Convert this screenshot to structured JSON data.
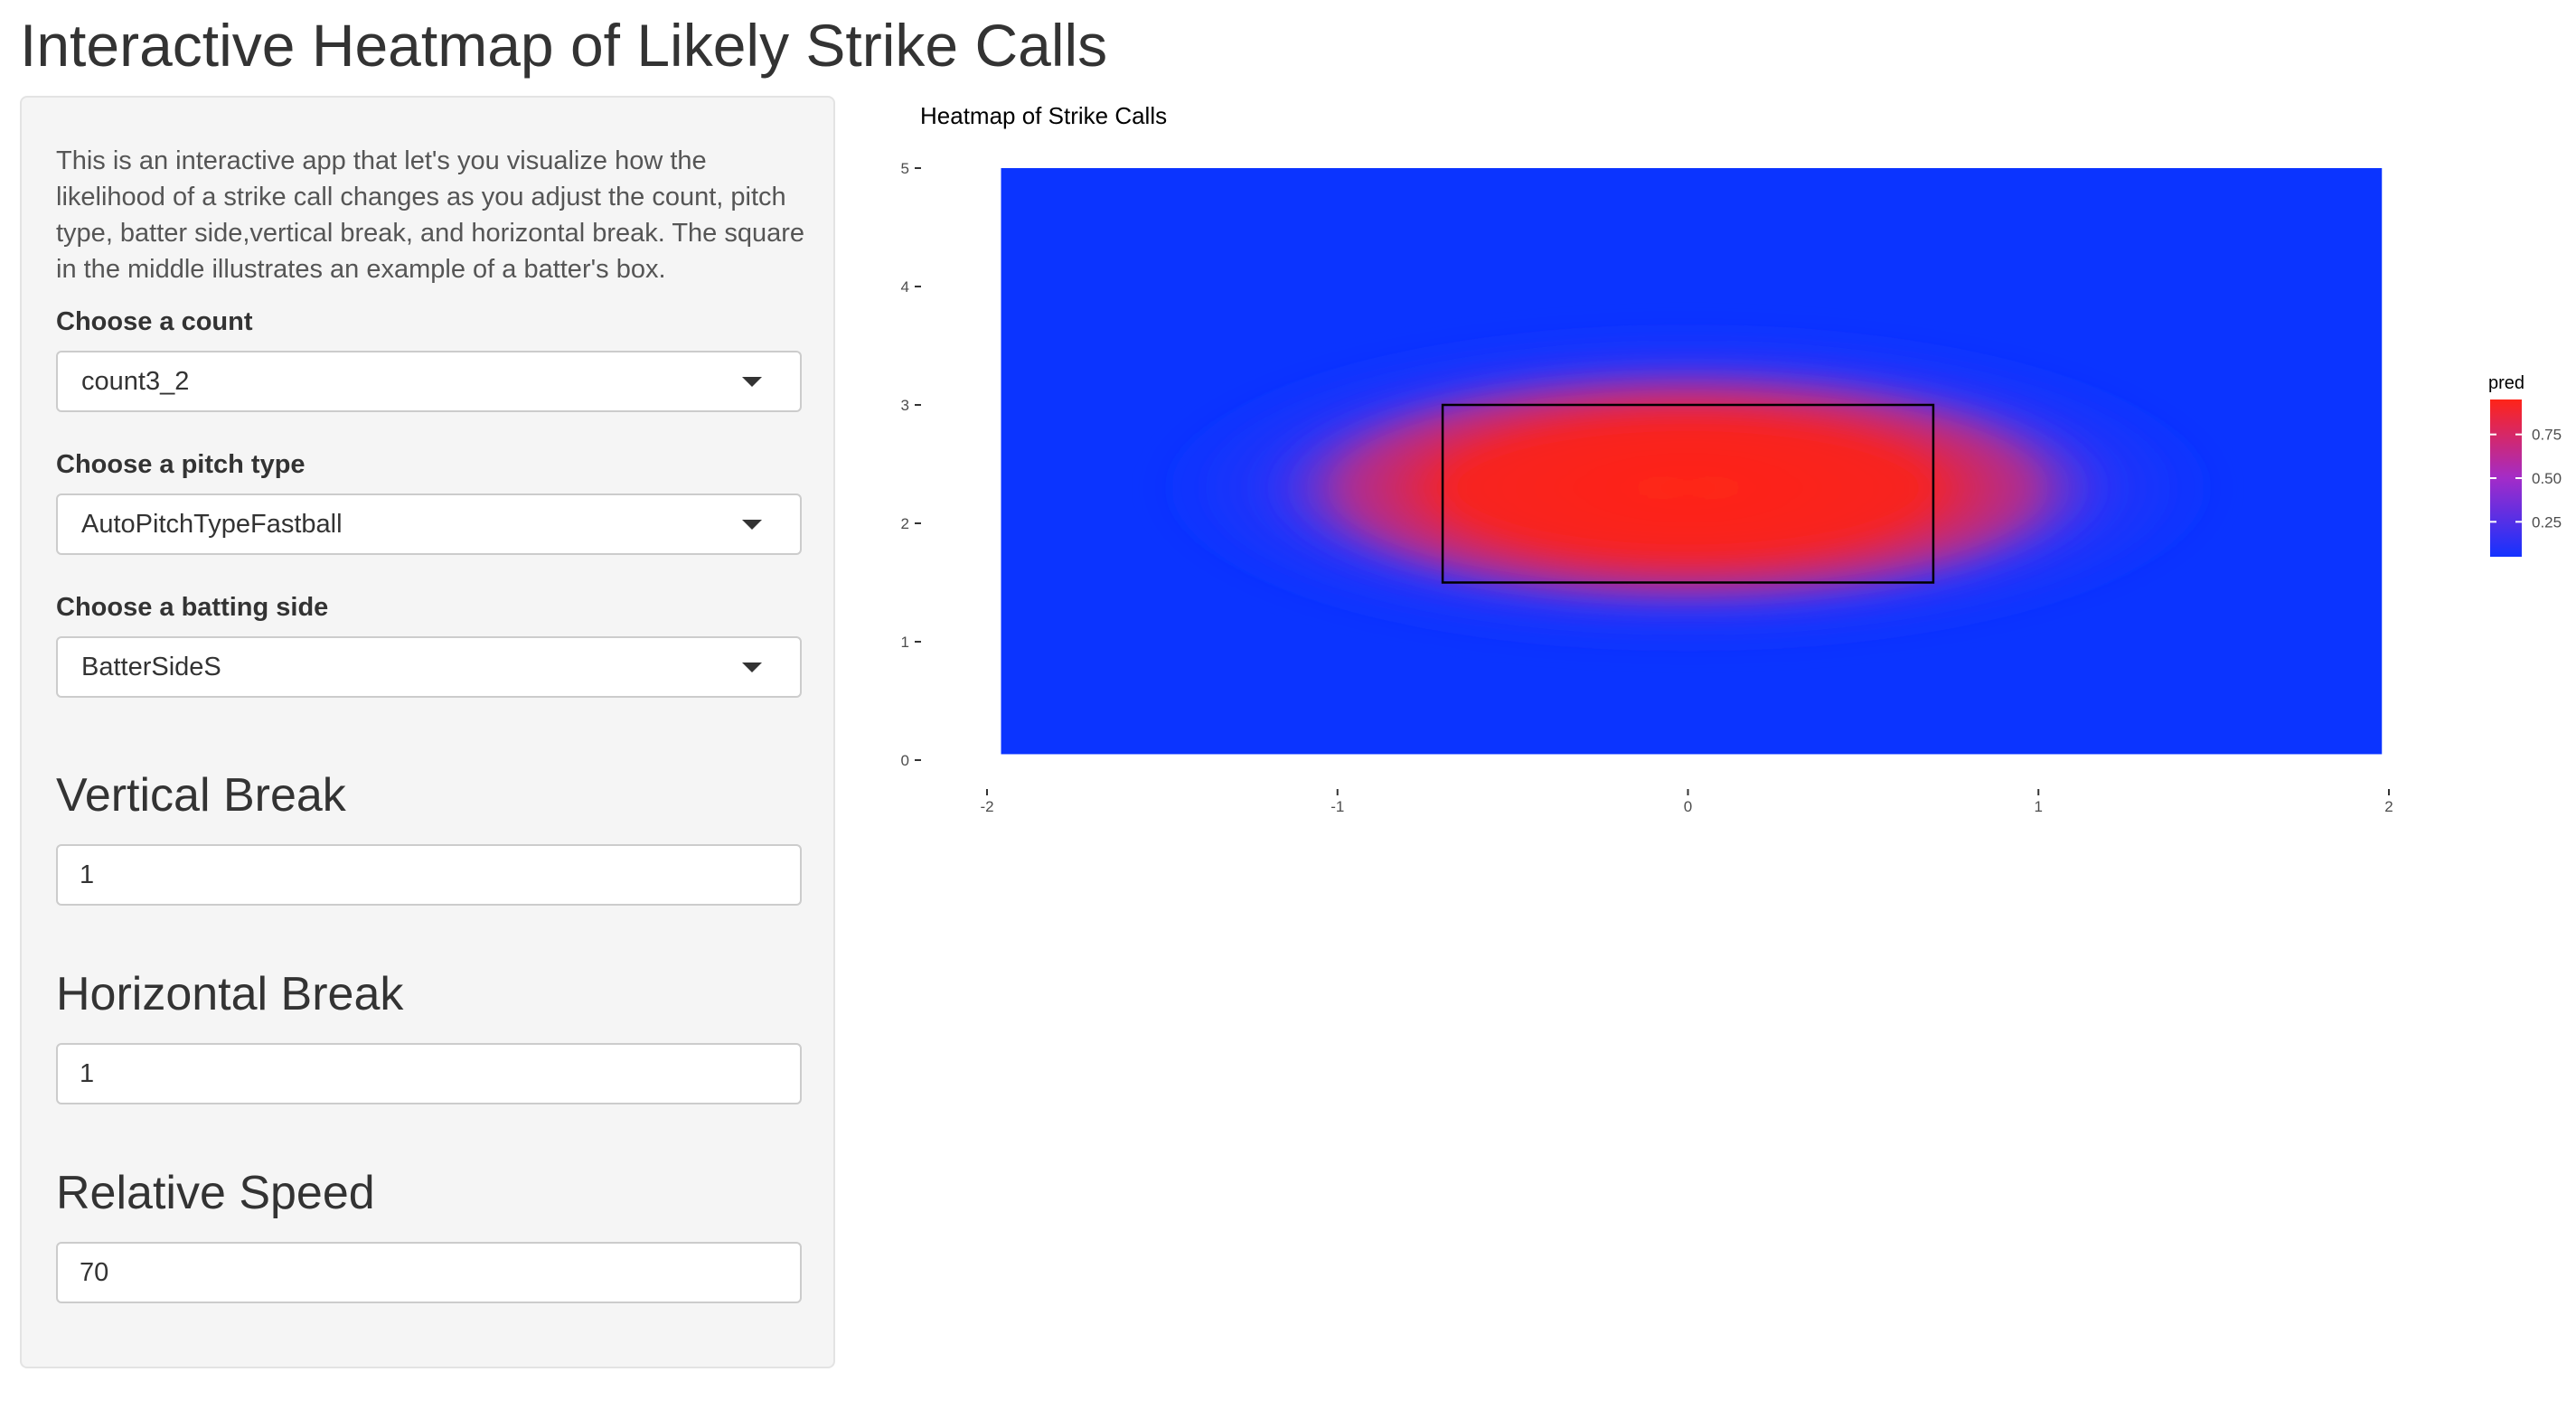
{
  "page": {
    "title": "Interactive Heatmap of Likely Strike Calls"
  },
  "sidebar": {
    "description": "This is an interactive app that let's you visualize how the likelihood of a strike call changes as you adjust the count, pitch type, batter side,vertical break, and horizontal break. The square in the middle illustrates an example of a batter's box.",
    "count": {
      "label": "Choose a count",
      "value": "count3_2"
    },
    "pitch_type": {
      "label": "Choose a pitch type",
      "value": "AutoPitchTypeFastball"
    },
    "batting_side": {
      "label": "Choose a batting side",
      "value": "BatterSideS"
    },
    "vertical_break": {
      "heading": "Vertical Break",
      "value": "1"
    },
    "horizontal_break": {
      "heading": "Horizontal Break",
      "value": "1"
    },
    "relative_speed": {
      "heading": "Relative Speed",
      "value": "70"
    }
  },
  "chart_data": {
    "type": "heatmap",
    "title": "Heatmap of Strike Calls",
    "xlabel": "",
    "ylabel": "",
    "xlim": [
      -2,
      2
    ],
    "ylim": [
      0,
      5
    ],
    "x_ticks": [
      "-2",
      "-1",
      "0",
      "1",
      "2"
    ],
    "y_ticks": [
      "0",
      "1",
      "2",
      "3",
      "4",
      "5"
    ],
    "heat_extent": {
      "x": [
        -1.96,
        1.98
      ],
      "y": [
        0.05,
        5
      ]
    },
    "fill_scale": {
      "name": "pred",
      "low": "#1432ff",
      "high": "#ff2418",
      "breaks": [
        "0.25",
        "0.50",
        "0.75"
      ]
    },
    "legend_position": "right",
    "grid": false,
    "strike_zone": {
      "x": [
        -0.7,
        0.7
      ],
      "y": [
        1.5,
        3.0
      ]
    }
  }
}
